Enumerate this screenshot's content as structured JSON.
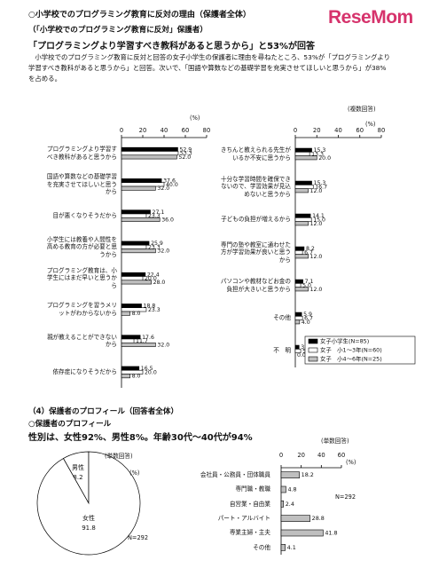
{
  "logo": "ReseMom",
  "section1": {
    "title": "○小学校でのプログラミング教育に反対の理由（保護者全体）",
    "subtitle": "（「小学校でのプログラミング教育に反対」保護者）",
    "headline": "「プログラミングより学習すべき教科があると思うから」と53%が回答",
    "body": "小学校でのプログラミング教育に反対と回答の女子小学生の保護者に理由を尋ねたところ、53%が「プログラミングより学習すべき教科があると思うから」と回答。次いで、「国語や算数などの基礎学習を充実させてほしいと思うから」が38%を占める。"
  },
  "section2": {
    "title": "（4）保護者のプロフィール（回答者全体）",
    "subtitle": "○保護者のプロフィール",
    "headline": "性別は、女性92%、男性8%。年齢30代～40代が94%"
  },
  "chart_data": [
    {
      "type": "bar",
      "orientation": "horizontal",
      "unit": "(%)",
      "categories": [
        "プログラミングより学習すべき教科があると思うから",
        "国語や算数などの基礎学習を充実させてほしいと思うから",
        "目が悪くなりそうだから",
        "小学生には教養や人間性を高める教育の方が必要と思うから",
        "プログラミング教育は、小学生にはまだ早いと思うから",
        "プログラミングを習うメリットがわからないから",
        "親が教えることができないから",
        "依存症になりそうだから"
      ],
      "series": [
        {
          "color": "#000000",
          "values": [
            52.9,
            37.6,
            27.1,
            25.9,
            22.4,
            18.8,
            17.6,
            16.5
          ],
          "value_labels": [
            "52.9",
            "37.6",
            "27.1",
            "25.9",
            "22.4",
            "18.8",
            "17.6",
            "16.5"
          ]
        },
        {
          "color": "#ffffff",
          "values": [
            53.3,
            40.0,
            23.3,
            23.3,
            20.0,
            23.3,
            11.7,
            20.0
          ],
          "value_labels": [
            "53.3",
            "40.0",
            "23.3",
            "23.3",
            "20.0",
            "23.3",
            "11.7",
            "20.0"
          ]
        },
        {
          "color": "#bfbfbf",
          "values": [
            52.0,
            32.0,
            36.0,
            32.0,
            28.0,
            8.0,
            32.0,
            8.0
          ],
          "value_labels": [
            "52.0",
            "32.0",
            "36.0",
            "32.0",
            "28.0",
            "8.0",
            "32.0",
            "8.0"
          ]
        }
      ],
      "xlim": [
        0,
        80
      ],
      "xticks": [
        0,
        20,
        40,
        60,
        80
      ]
    },
    {
      "type": "bar",
      "orientation": "horizontal",
      "note": "(複数回答)",
      "unit": "(%)",
      "categories": [
        "きちんと教えられる先生がいるか不安に思うから",
        "十分な学習時間を確保できないので、学習効果が見込めないと思うから",
        "子どもの負担が増えるから",
        "専門の塾や教室に通わせた方が学習効果が良いと思うから",
        "パソコンや教材などお金の負担が大きいと思うから",
        "その他",
        "不　明"
      ],
      "series": [
        {
          "name": "女子小学生(N=85)",
          "color": "#000000",
          "values": [
            15.3,
            15.3,
            14.1,
            8.2,
            7.1,
            5.9,
            3.5
          ],
          "value_labels": [
            "15.3",
            "15.3",
            "14.1",
            "8.2",
            "7.1",
            "5.9",
            "3.5"
          ]
        },
        {
          "name": "女子　小1～3年(N=60)",
          "color": "#ffffff",
          "values": [
            13.3,
            16.7,
            15.0,
            6.7,
            5.0,
            6.7,
            5.0
          ],
          "value_labels": [
            "13.3",
            "16.7",
            "15.0",
            "6.7",
            "5.0",
            "6.7",
            "5.0"
          ]
        },
        {
          "name": "女子　小4～6年(N=25)",
          "color": "#bfbfbf",
          "values": [
            20.0,
            12.0,
            12.0,
            12.0,
            12.0,
            4.0,
            0.0
          ],
          "value_labels": [
            "20.0",
            "12.0",
            "12.0",
            "12.0",
            "12.0",
            "4.0",
            "0.0"
          ]
        }
      ],
      "xlim": [
        0,
        80
      ],
      "xticks": [
        0,
        20,
        40,
        60,
        80
      ],
      "legend": "lower right"
    },
    {
      "type": "pie",
      "note": "(単数回答)",
      "unit": "(%)",
      "categories": [
        "男性",
        "女性"
      ],
      "values": [
        8.2,
        91.8
      ],
      "colors": [
        "#ffffff",
        "#ffffff"
      ],
      "n_label": "N=292"
    },
    {
      "type": "bar",
      "orientation": "horizontal",
      "note": "(単数回答)",
      "unit": "(%)",
      "categories": [
        "会社員・公務員・団体職員",
        "専門職・教職",
        "自営業・自由業",
        "パート・アルバイト",
        "専業主婦・主夫",
        "その他"
      ],
      "series": [
        {
          "color": "#bfbfbf",
          "values": [
            18.2,
            4.8,
            2.4,
            28.8,
            41.8,
            4.1
          ]
        }
      ],
      "xlim": [
        0,
        60
      ],
      "xticks": [
        0,
        20,
        40,
        60
      ],
      "n_label": "N=292"
    }
  ]
}
